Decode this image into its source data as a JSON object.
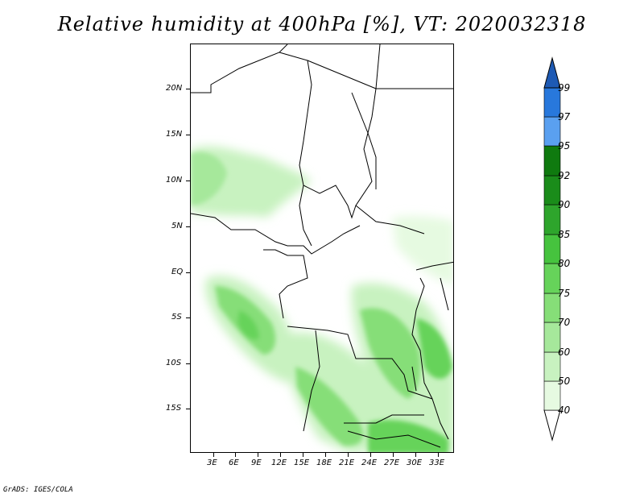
{
  "title": "Relative humidity at 400hPa [%], VT: 2020032318",
  "credit": "GrADS: IGES/COLA",
  "lat_labels": [
    "20N",
    "15N",
    "10N",
    "5N",
    "EQ",
    "5S",
    "10S",
    "15S"
  ],
  "lon_labels": [
    "3E",
    "6E",
    "9E",
    "12E",
    "15E",
    "18E",
    "21E",
    "24E",
    "27E",
    "30E",
    "33E"
  ],
  "colorbar": {
    "levels": [
      "40",
      "50",
      "60",
      "70",
      "75",
      "80",
      "85",
      "90",
      "92",
      "95",
      "97",
      "99"
    ],
    "colors": [
      "#ffffff",
      "#e6fae1",
      "#c8f2c0",
      "#a6e89b",
      "#86de78",
      "#66d35a",
      "#46c33e",
      "#2ea52c",
      "#1a8c1a",
      "#5aa0f0",
      "#2878dc",
      "#1e5ab4"
    ]
  }
}
